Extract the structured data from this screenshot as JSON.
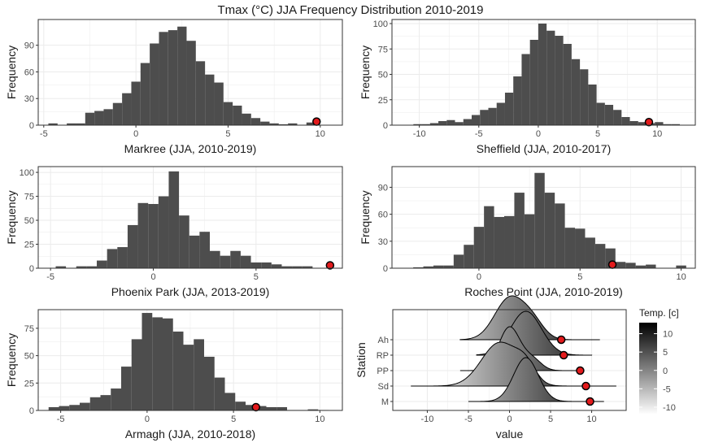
{
  "title": "Tmax (°C) JJA Frequency Distribution 2010-2019",
  "colors": {
    "bar": "#4d4d4d",
    "grid": "#ebebeb",
    "panel_border": "#333333",
    "marker_fill": "#e31a1c",
    "marker_stroke": "#000000"
  },
  "chart_data": [
    {
      "type": "bar",
      "xlabel": "Markree (JJA, 2010-2019)",
      "ylabel": "Frequency",
      "xlim": [
        -5.3,
        11.2
      ],
      "ylim": [
        0,
        119
      ],
      "xticks": [
        -5,
        0,
        5,
        10
      ],
      "yticks": [
        0,
        30,
        60,
        90
      ],
      "bin_width": 0.5,
      "bins_start": [
        -4.75,
        -4.25,
        -3.75,
        -3.25,
        -2.75,
        -2.25,
        -1.75,
        -1.25,
        -0.75,
        -0.25,
        0.25,
        0.75,
        1.25,
        1.75,
        2.25,
        2.75,
        3.25,
        3.75,
        4.25,
        4.75,
        5.25,
        5.75,
        6.25,
        6.75,
        7.25,
        7.75,
        8.25,
        8.75,
        9.25
      ],
      "values": [
        2,
        0,
        2,
        2,
        14,
        16,
        18,
        25,
        36,
        49,
        70,
        92,
        105,
        107,
        111,
        95,
        72,
        57,
        48,
        26,
        22,
        13,
        8,
        4,
        2,
        1,
        2,
        0,
        3
      ],
      "marker": {
        "x": 9.8,
        "y": 4
      }
    },
    {
      "type": "bar",
      "xlabel": "Sheffield (JJA, 2010-2017)",
      "ylabel": "Frequency",
      "xlim": [
        -12.3,
        13.2
      ],
      "ylim": [
        0,
        104
      ],
      "xticks": [
        -10,
        -5,
        0,
        5,
        10
      ],
      "yticks": [
        0,
        25,
        50,
        75,
        100
      ],
      "bin_width": 0.7,
      "bins_start": [
        -10.5,
        -9.8,
        -9.1,
        -8.4,
        -7.7,
        -7.0,
        -6.3,
        -5.6,
        -4.9,
        -4.2,
        -3.5,
        -2.8,
        -2.1,
        -1.4,
        -0.7,
        0.0,
        0.7,
        1.4,
        2.1,
        2.8,
        3.5,
        4.2,
        4.9,
        5.6,
        6.3,
        7.0,
        7.7,
        8.4,
        9.1,
        9.8,
        10.5,
        11.2
      ],
      "values": [
        1,
        1,
        2,
        4,
        5,
        3,
        6,
        10,
        15,
        17,
        22,
        32,
        48,
        70,
        84,
        100,
        93,
        88,
        80,
        65,
        55,
        40,
        22,
        20,
        15,
        8,
        4,
        3,
        2,
        3,
        1,
        1
      ],
      "marker": {
        "x": 9.3,
        "y": 3
      }
    },
    {
      "type": "bar",
      "xlabel": "Phoenix Park (JJA, 2013-2019)",
      "ylabel": "Frequency",
      "xlim": [
        -5.6,
        9.2
      ],
      "ylim": [
        0,
        106
      ],
      "xticks": [
        -5,
        0,
        5
      ],
      "yticks": [
        0,
        25,
        50,
        75,
        100
      ],
      "bin_width": 0.5,
      "bins_start": [
        -4.75,
        -4.25,
        -3.75,
        -3.25,
        -2.75,
        -2.25,
        -1.75,
        -1.25,
        -0.75,
        -0.25,
        0.25,
        0.75,
        1.25,
        1.75,
        2.25,
        2.75,
        3.25,
        3.75,
        4.25,
        4.75,
        5.25,
        5.75,
        6.25,
        6.75,
        7.25,
        7.75
      ],
      "values": [
        2,
        0,
        2,
        2,
        8,
        20,
        22,
        45,
        68,
        67,
        75,
        101,
        55,
        34,
        38,
        18,
        13,
        18,
        13,
        6,
        6,
        4,
        2,
        2,
        2,
        0
      ],
      "marker": {
        "x": 8.6,
        "y": 3
      }
    },
    {
      "type": "bar",
      "xlabel": "Roches Point (JJA, 2010-2019)",
      "ylabel": "Frequency",
      "xlim": [
        -4.3,
        10.7
      ],
      "ylim": [
        0,
        113
      ],
      "xticks": [
        0,
        5,
        10
      ],
      "yticks": [
        0,
        30,
        60,
        90
      ],
      "bin_width": 0.5,
      "bins_start": [
        -3.25,
        -2.75,
        -2.25,
        -1.75,
        -1.25,
        -0.75,
        -0.25,
        0.25,
        0.75,
        1.25,
        1.75,
        2.25,
        2.75,
        3.25,
        3.75,
        4.25,
        4.75,
        5.25,
        5.75,
        6.25,
        6.75,
        7.25,
        7.75,
        8.25,
        8.75,
        9.25,
        9.75
      ],
      "values": [
        1,
        2,
        3,
        3,
        15,
        26,
        46,
        69,
        57,
        58,
        84,
        60,
        106,
        84,
        72,
        45,
        44,
        34,
        27,
        22,
        7,
        6,
        3,
        4,
        0,
        0,
        3
      ],
      "marker": {
        "x": 6.6,
        "y": 4
      }
    },
    {
      "type": "bar",
      "xlabel": "Armagh (JJA, 2010-2018)",
      "ylabel": "Frequency",
      "xlim": [
        -6.3,
        11.3
      ],
      "ylim": [
        0,
        92
      ],
      "xticks": [
        -5,
        0,
        5,
        10
      ],
      "yticks": [
        0,
        25,
        50,
        75
      ],
      "bin_width": 0.6,
      "bins_start": [
        -5.7,
        -5.1,
        -4.5,
        -3.9,
        -3.3,
        -2.7,
        -2.1,
        -1.5,
        -0.9,
        -0.3,
        0.3,
        0.9,
        1.5,
        2.1,
        2.7,
        3.3,
        3.9,
        4.5,
        5.1,
        5.7,
        6.3,
        6.9,
        7.5,
        8.1,
        8.7,
        9.3,
        9.9
      ],
      "values": [
        3,
        4,
        5,
        7,
        12,
        14,
        20,
        40,
        65,
        89,
        85,
        84,
        72,
        60,
        65,
        49,
        30,
        16,
        8,
        5,
        4,
        3,
        3,
        0,
        0,
        1,
        0
      ],
      "marker": {
        "x": 6.3,
        "y": 3
      }
    },
    {
      "type": "ridgeline",
      "xlabel": "value",
      "ylabel": "Station",
      "xlim": [
        -14.2,
        14.2
      ],
      "xticks": [
        -10,
        -5,
        0,
        5,
        10
      ],
      "stations": [
        "M",
        "Sd",
        "PP",
        "RP",
        "Ah"
      ],
      "station_order_bottom_to_top": [
        "M",
        "Sd",
        "PP",
        "RP",
        "Ah"
      ],
      "ridges": [
        {
          "station": "M",
          "range": [
            -5,
            11.5
          ],
          "peaks": [
            {
              "mu": 2.0,
              "sd": 1.5,
              "h": 1.0
            }
          ],
          "marker": 9.8
        },
        {
          "station": "Sd",
          "range": [
            -12,
            13
          ],
          "peaks": [
            {
              "mu": -1.2,
              "sd": 2.2,
              "h": 0.95
            },
            {
              "mu": 2.0,
              "sd": 1.2,
              "h": 0.35
            }
          ],
          "marker": 9.3
        },
        {
          "station": "PP",
          "range": [
            -6,
            9
          ],
          "peaks": [
            {
              "mu": 0.0,
              "sd": 1.3,
              "h": 1.0
            },
            {
              "mu": 2.8,
              "sd": 1.1,
              "h": 0.25
            }
          ],
          "marker": 8.6
        },
        {
          "station": "RP",
          "range": [
            -4,
            10
          ],
          "peaks": [
            {
              "mu": 2.0,
              "sd": 1.9,
              "h": 0.95
            }
          ],
          "marker": 6.6
        },
        {
          "station": "Ah",
          "range": [
            -6,
            11
          ],
          "peaks": [
            {
              "mu": 0.0,
              "sd": 1.8,
              "h": 0.9
            },
            {
              "mu": 2.8,
              "sd": 1.4,
              "h": 0.35
            }
          ],
          "marker": 6.3
        }
      ],
      "legend": {
        "title": "Temp. [c]",
        "ticks": [
          10,
          5,
          0,
          -5,
          -10
        ],
        "range": [
          -12,
          13
        ],
        "low_color": "#ffffff",
        "high_color": "#000000"
      }
    }
  ]
}
